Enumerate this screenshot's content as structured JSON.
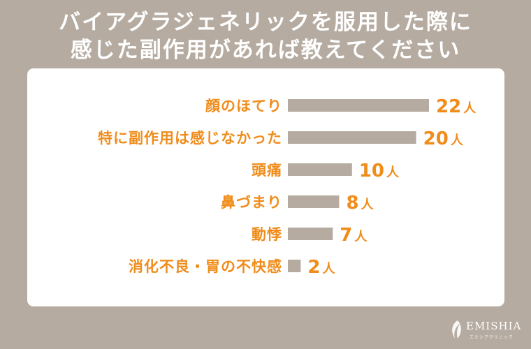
{
  "header": {
    "title_line1": "バイアグラジェネリックを服用した際に",
    "title_line2": "感じた副作用があれば教えてください"
  },
  "chart_data": {
    "type": "bar",
    "orientation": "horizontal",
    "categories": [
      "顔のほてり",
      "特に副作用は感じなかった",
      "頭痛",
      "鼻づまり",
      "動悸",
      "消化不良・胃の不快感"
    ],
    "values": [
      22,
      20,
      10,
      8,
      7,
      2
    ],
    "value_unit": "人",
    "title": "",
    "xlabel": "",
    "ylabel": "",
    "xlim": [
      0,
      22
    ],
    "grid": false,
    "colors": {
      "bar": "#b5aba0",
      "label": "#f08c1a",
      "background": "#ffffff"
    }
  },
  "logo": {
    "text": "EMISHIA",
    "subtext": "エミシアクリニック"
  }
}
